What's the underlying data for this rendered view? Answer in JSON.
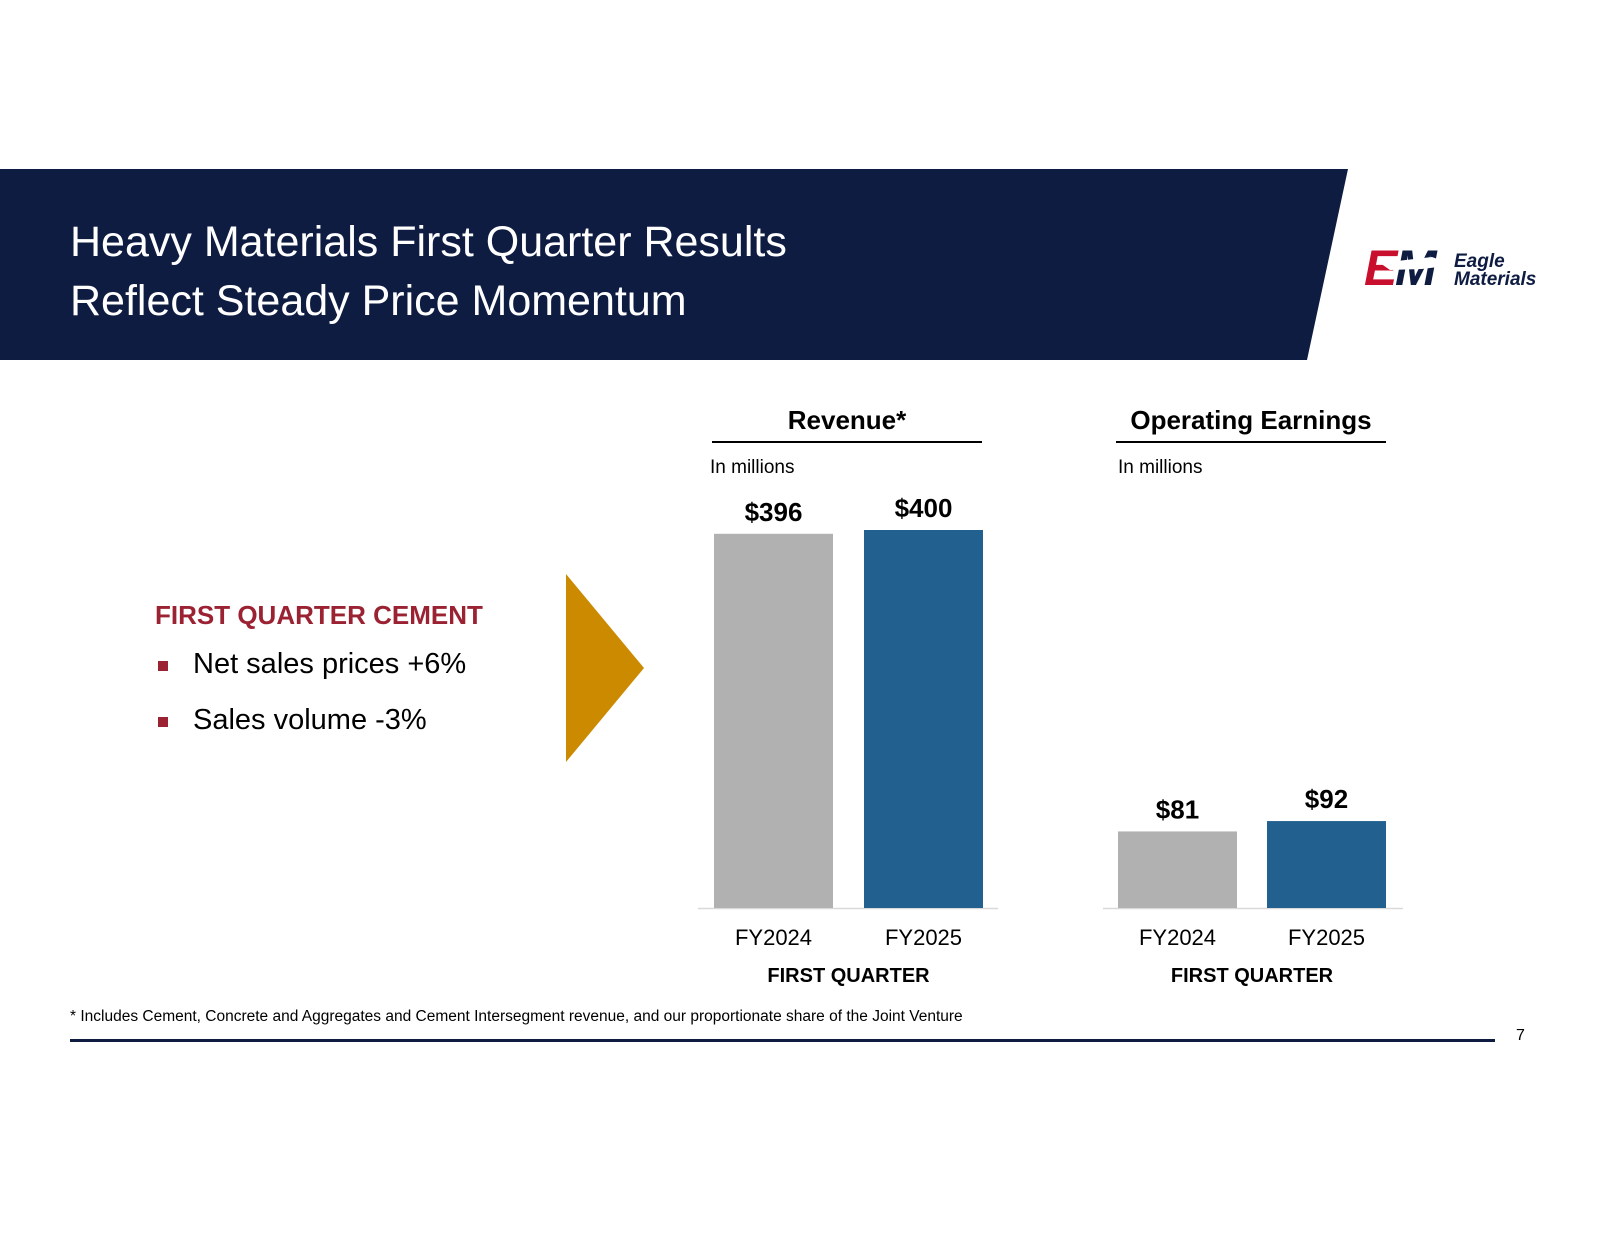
{
  "header": {
    "title_line1": "Heavy Materials First Quarter Results",
    "title_line2": "Reflect Steady Price Momentum",
    "banner_color": "#0f1c42"
  },
  "logo": {
    "monogram": "EM",
    "word1": "Eagle",
    "word2": "Materials",
    "colors": {
      "red": "#c8102e",
      "navy": "#0f1c42"
    }
  },
  "highlights": {
    "heading": "FIRST QUARTER CEMENT",
    "items": [
      {
        "text": "Net sales prices +6%"
      },
      {
        "text": "Sales volume -3%"
      }
    ],
    "accent_color": "#9b2232",
    "arrow_icon": "right-triangle-arrow",
    "arrow_color": "#cc8a00"
  },
  "chart_data": [
    {
      "type": "bar",
      "title": "Revenue*",
      "unit_note": "In millions",
      "categories": [
        "FY2024",
        "FY2025"
      ],
      "values": [
        396,
        400
      ],
      "labels": [
        "$396",
        "$400"
      ],
      "colors": [
        "#b1b1b1",
        "#22608f"
      ],
      "xlabel": "FIRST QUARTER",
      "ylim": [
        0,
        400
      ],
      "grid": false
    },
    {
      "type": "bar",
      "title": "Operating Earnings",
      "unit_note": "In millions",
      "categories": [
        "FY2024",
        "FY2025"
      ],
      "values": [
        81,
        92
      ],
      "labels": [
        "$81",
        "$92"
      ],
      "colors": [
        "#b1b1b1",
        "#22608f"
      ],
      "xlabel": "FIRST QUARTER",
      "ylim": [
        0,
        400
      ],
      "grid": false
    }
  ],
  "footer": {
    "footnote": "* Includes Cement, Concrete and Aggregates and Cement Intersegment revenue, and our proportionate share of the Joint Venture",
    "page_number": "7"
  }
}
